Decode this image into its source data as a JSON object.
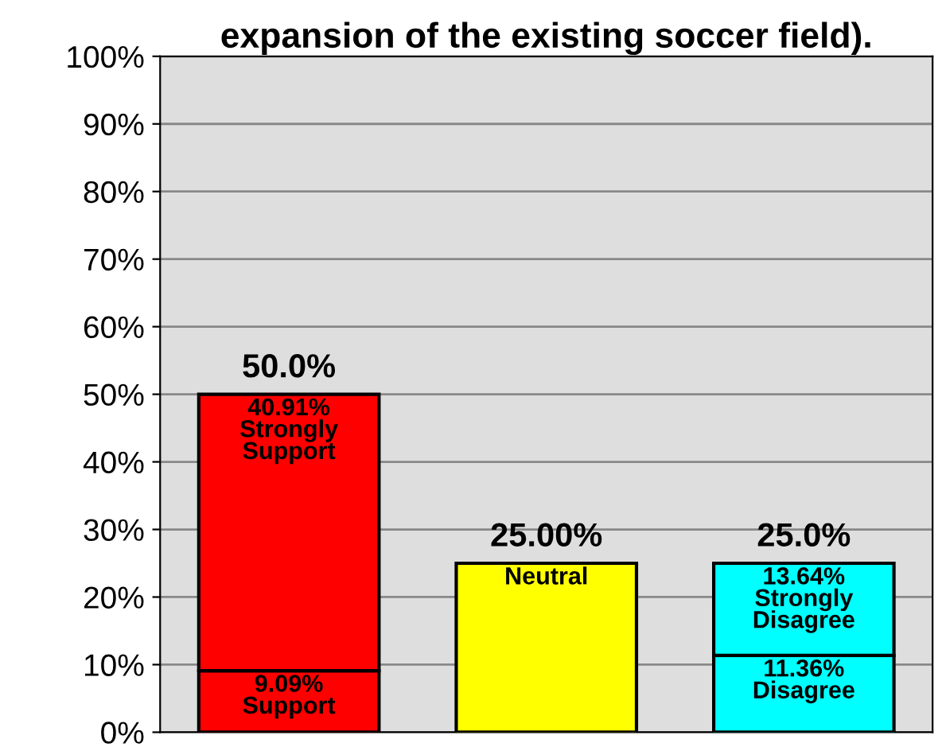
{
  "chart_data": {
    "type": "bar",
    "title": "expansion of the existing soccer field).",
    "stacked": true,
    "categories": [
      null,
      null,
      null
    ],
    "series": [
      {
        "colors": [
          "#ff0000",
          "#ffff00",
          "#00ffff"
        ],
        "values": [
          9.09,
          25,
          11.36
        ],
        "value_labels": [
          "9.09%\nSupport",
          "Neutral",
          "11.36%\nDisagree"
        ]
      },
      {
        "colors": [
          "#ff0000",
          "#ffff00",
          "#00ffff"
        ],
        "values": [
          40.91,
          null,
          13.64
        ],
        "value_labels": [
          "40.91%\nStrongly\nSupport",
          null,
          "13.64%\nStrongly\nDisagree"
        ]
      }
    ],
    "totals": [
      "50.0%",
      "25.00%",
      "25.0%"
    ],
    "ylim": [
      0,
      100
    ],
    "yticks": [
      {
        "value": 0,
        "label": "0%"
      },
      {
        "value": 10,
        "label": "10%"
      },
      {
        "value": 20,
        "label": "20%"
      },
      {
        "value": 30,
        "label": "30%"
      },
      {
        "value": 40,
        "label": "40%"
      },
      {
        "value": 50,
        "label": "50%"
      },
      {
        "value": 60,
        "label": "60%"
      },
      {
        "value": 70,
        "label": "70%"
      },
      {
        "value": 80,
        "label": "80%"
      },
      {
        "value": 90,
        "label": "90%"
      },
      {
        "value": 100,
        "label": "100%"
      }
    ],
    "grid": "y",
    "legend": false
  }
}
